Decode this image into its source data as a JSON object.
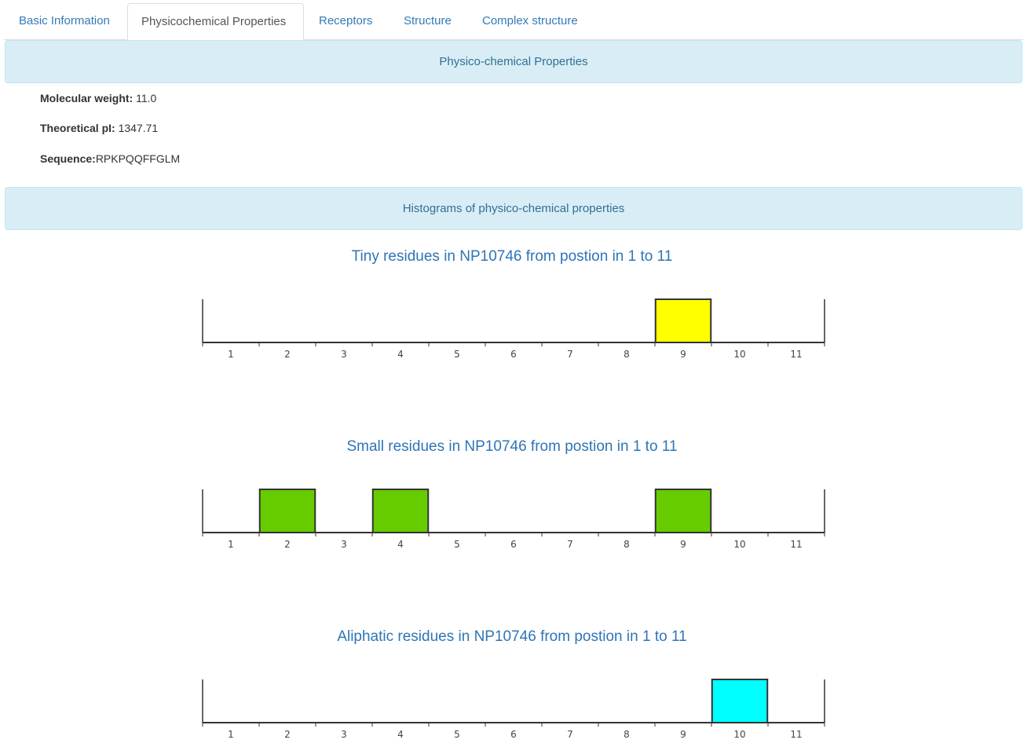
{
  "tabs": [
    {
      "label": "Basic Information",
      "active": false
    },
    {
      "label": "Physicochemical Properties",
      "active": true
    },
    {
      "label": "Receptors",
      "active": false
    },
    {
      "label": "Structure",
      "active": false
    },
    {
      "label": "Complex structure",
      "active": false
    }
  ],
  "properties_panel": {
    "title": "Physico-chemical Properties"
  },
  "properties": {
    "molecular_weight_label": "Molecular weight:",
    "molecular_weight_value": "11.0",
    "theoretical_pi_label": "Theoretical pI:",
    "theoretical_pi_value": "1347.71",
    "sequence_label": "Sequence:",
    "sequence_value": "RPKPQQFFGLM"
  },
  "histograms_panel": {
    "title": "Histograms of physico-chemical properties"
  },
  "chart_data": [
    {
      "type": "bar",
      "title": "Tiny residues in NP10746 from postion in 1 to 11",
      "categories": [
        "1",
        "2",
        "3",
        "4",
        "5",
        "6",
        "7",
        "8",
        "9",
        "10",
        "11"
      ],
      "values": [
        0,
        0,
        0,
        0,
        0,
        0,
        0,
        0,
        1,
        0,
        0
      ],
      "ylim": [
        0,
        1
      ],
      "color": "#ffff00",
      "grid": false
    },
    {
      "type": "bar",
      "title": "Small residues in NP10746 from postion in 1 to 11",
      "categories": [
        "1",
        "2",
        "3",
        "4",
        "5",
        "6",
        "7",
        "8",
        "9",
        "10",
        "11"
      ],
      "values": [
        0,
        1,
        0,
        1,
        0,
        0,
        0,
        0,
        1,
        0,
        0
      ],
      "ylim": [
        0,
        1
      ],
      "color": "#66cc00",
      "grid": false
    },
    {
      "type": "bar",
      "title": "Aliphatic residues in NP10746 from postion in 1 to 11",
      "categories": [
        "1",
        "2",
        "3",
        "4",
        "5",
        "6",
        "7",
        "8",
        "9",
        "10",
        "11"
      ],
      "values": [
        0,
        0,
        0,
        0,
        0,
        0,
        0,
        0,
        0,
        1,
        0
      ],
      "ylim": [
        0,
        1
      ],
      "color": "#00ffff",
      "grid": false
    }
  ]
}
